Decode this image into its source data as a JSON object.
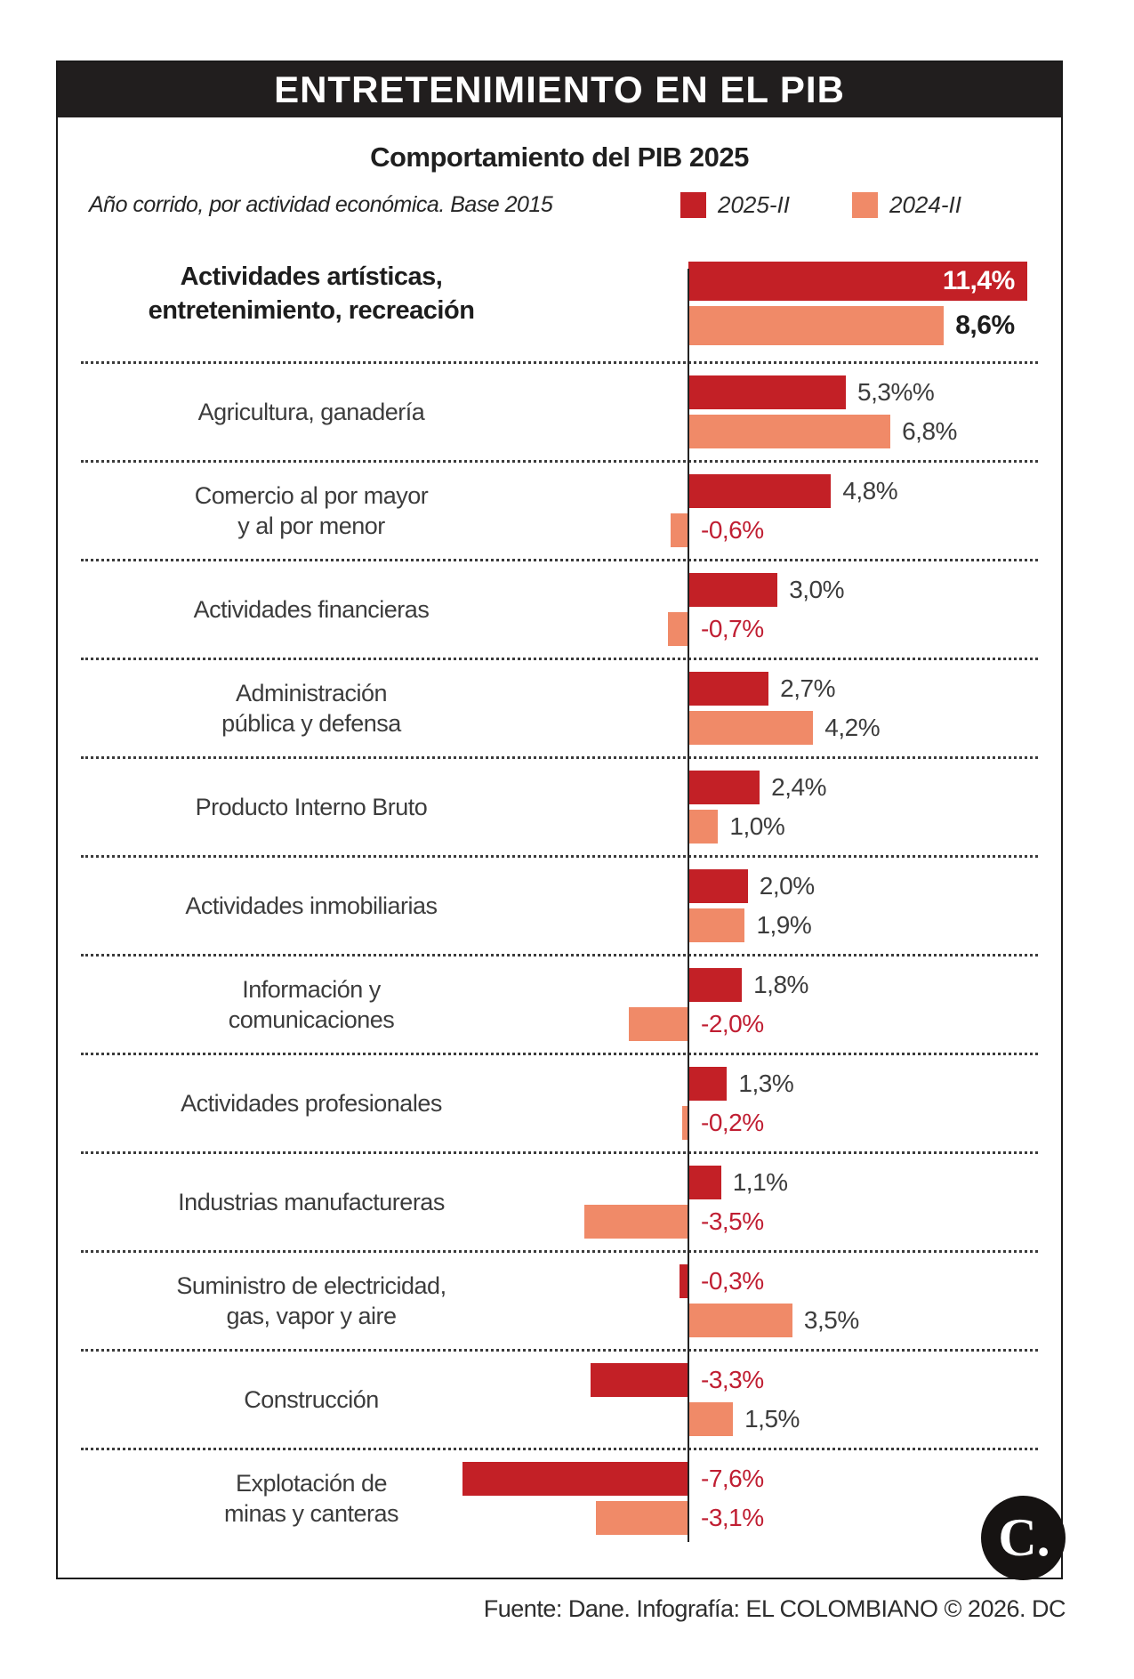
{
  "header": {
    "title": "ENTRETENIMIENTO EN EL PIB"
  },
  "colors": {
    "series_2025": "#C32026",
    "series_2024": "#F08A68",
    "negative_label": "#C01E32",
    "header_bg": "#211E1E"
  },
  "chart_data": {
    "type": "bar",
    "orientation": "horizontal",
    "title": "Comportamiento del PIB 2025",
    "subtitle": "Año corrido, por actividad económica. Base 2015",
    "unit": "%",
    "legend": [
      {
        "name": "2025-II",
        "color": "#C32026"
      },
      {
        "name": "2024-II",
        "color": "#F08A68"
      }
    ],
    "legend_position": "top-right",
    "zero_baseline": true,
    "rows": [
      {
        "label_lines": [
          "Actividades artísticas,",
          "entretenimiento, recreación"
        ],
        "highlight": true,
        "values": [
          11.4,
          8.6
        ],
        "value_labels": [
          "11,4%",
          "8,6%"
        ]
      },
      {
        "label_lines": [
          "Agricultura, ganadería"
        ],
        "values": [
          5.3,
          6.8
        ],
        "value_labels": [
          "5,3%%",
          "6,8%"
        ]
      },
      {
        "label_lines": [
          "Comercio al por mayor",
          "y al por menor"
        ],
        "values": [
          4.8,
          -0.6
        ],
        "value_labels": [
          "4,8%",
          "-0,6%"
        ]
      },
      {
        "label_lines": [
          "Actividades financieras"
        ],
        "values": [
          3.0,
          -0.7
        ],
        "value_labels": [
          "3,0%",
          "-0,7%"
        ]
      },
      {
        "label_lines": [
          "Administración",
          "pública y defensa"
        ],
        "values": [
          2.7,
          4.2
        ],
        "value_labels": [
          "2,7%",
          "4,2%"
        ]
      },
      {
        "label_lines": [
          "Producto Interno Bruto"
        ],
        "values": [
          2.4,
          1.0
        ],
        "value_labels": [
          "2,4%",
          "1,0%"
        ]
      },
      {
        "label_lines": [
          "Actividades inmobiliarias"
        ],
        "values": [
          2.0,
          1.9
        ],
        "value_labels": [
          "2,0%",
          "1,9%"
        ]
      },
      {
        "label_lines": [
          "Información y",
          "comunicaciones"
        ],
        "values": [
          1.8,
          -2.0
        ],
        "value_labels": [
          "1,8%",
          "-2,0%"
        ]
      },
      {
        "label_lines": [
          "Actividades profesionales"
        ],
        "values": [
          1.3,
          -0.2
        ],
        "value_labels": [
          "1,3%",
          "-0,2%"
        ]
      },
      {
        "label_lines": [
          "Industrias manufactureras"
        ],
        "values": [
          1.1,
          -3.5
        ],
        "value_labels": [
          "1,1%",
          "-3,5%"
        ]
      },
      {
        "label_lines": [
          "Suministro de electricidad,",
          "gas, vapor y aire"
        ],
        "values": [
          -0.3,
          3.5
        ],
        "value_labels": [
          "-0,3%",
          "3,5%"
        ]
      },
      {
        "label_lines": [
          "Construcción"
        ],
        "values": [
          -3.3,
          1.5
        ],
        "value_labels": [
          "-3,3%",
          "1,5%"
        ]
      },
      {
        "label_lines": [
          "Explotación de",
          "minas y canteras"
        ],
        "values": [
          -7.6,
          -3.1
        ],
        "value_labels": [
          "-7,6%",
          "-3,1%"
        ]
      }
    ]
  },
  "footer": {
    "source": "Fuente: Dane. Infografía: EL COLOMBIANO © 2026. DC"
  },
  "logo": {
    "text": "C."
  }
}
